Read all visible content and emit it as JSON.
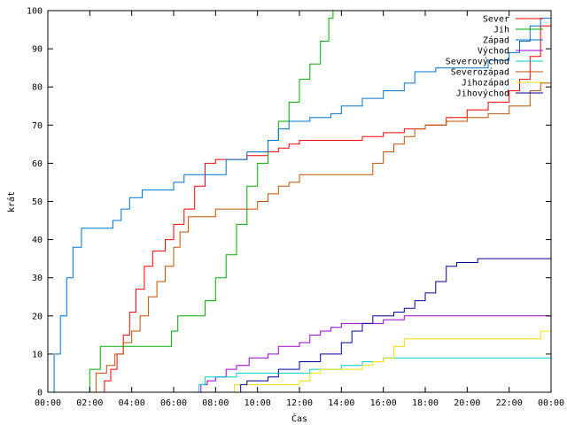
{
  "chart_data": {
    "type": "line",
    "xlabel": "Čas",
    "ylabel": "krát",
    "xlim": [
      0,
      24
    ],
    "ylim": [
      0,
      100
    ],
    "x_ticks": [
      {
        "value": 0,
        "label": "00:00"
      },
      {
        "value": 2,
        "label": "02:00"
      },
      {
        "value": 4,
        "label": "04:00"
      },
      {
        "value": 6,
        "label": "06:00"
      },
      {
        "value": 8,
        "label": "08:00"
      },
      {
        "value": 10,
        "label": "10:00"
      },
      {
        "value": 12,
        "label": "12:00"
      },
      {
        "value": 14,
        "label": "14:00"
      },
      {
        "value": 16,
        "label": "16:00"
      },
      {
        "value": 18,
        "label": "18:00"
      },
      {
        "value": 20,
        "label": "20:00"
      },
      {
        "value": 22,
        "label": "22:00"
      },
      {
        "value": 24,
        "label": "00:00"
      }
    ],
    "y_ticks": [
      0,
      10,
      20,
      30,
      40,
      50,
      60,
      70,
      80,
      90,
      100
    ],
    "grid": false,
    "legend_position": "top-right",
    "series": [
      {
        "name": "Sever",
        "color": "#ff0000",
        "points": [
          [
            2.5,
            0
          ],
          [
            2.7,
            3
          ],
          [
            3.0,
            6
          ],
          [
            3.3,
            10
          ],
          [
            3.6,
            15
          ],
          [
            3.9,
            21
          ],
          [
            4.2,
            27
          ],
          [
            4.6,
            33
          ],
          [
            5.0,
            37
          ],
          [
            5.6,
            40
          ],
          [
            6.0,
            44
          ],
          [
            6.5,
            48
          ],
          [
            7.0,
            54
          ],
          [
            7.5,
            60
          ],
          [
            8.0,
            61
          ],
          [
            9.5,
            62
          ],
          [
            10.5,
            63
          ],
          [
            11.0,
            64
          ],
          [
            11.5,
            65
          ],
          [
            12.0,
            66
          ],
          [
            13.0,
            66
          ],
          [
            14.0,
            66
          ],
          [
            15.0,
            67
          ],
          [
            16.0,
            68
          ],
          [
            17.0,
            69
          ],
          [
            18.0,
            70
          ],
          [
            19.0,
            72
          ],
          [
            20.0,
            74
          ],
          [
            21.0,
            76
          ],
          [
            22.0,
            79
          ],
          [
            22.5,
            82
          ],
          [
            23.0,
            88
          ],
          [
            23.5,
            96
          ],
          [
            24.0,
            98
          ]
        ]
      },
      {
        "name": "Jih",
        "color": "#00aa00",
        "points": [
          [
            1.7,
            0
          ],
          [
            2.0,
            6
          ],
          [
            2.5,
            12
          ],
          [
            4.0,
            12
          ],
          [
            5.5,
            12
          ],
          [
            5.9,
            16
          ],
          [
            6.2,
            20
          ],
          [
            7.0,
            20
          ],
          [
            7.5,
            24
          ],
          [
            8.0,
            30
          ],
          [
            8.5,
            36
          ],
          [
            9.0,
            44
          ],
          [
            9.5,
            54
          ],
          [
            10.0,
            60
          ],
          [
            10.5,
            66
          ],
          [
            11.0,
            71
          ],
          [
            11.5,
            76
          ],
          [
            12.0,
            82
          ],
          [
            12.5,
            86
          ],
          [
            13.0,
            92
          ],
          [
            13.4,
            98
          ],
          [
            13.6,
            100
          ]
        ]
      },
      {
        "name": "Západ",
        "color": "#0070cc",
        "points": [
          [
            0,
            0
          ],
          [
            0.3,
            10
          ],
          [
            0.6,
            20
          ],
          [
            0.9,
            30
          ],
          [
            1.2,
            38
          ],
          [
            1.6,
            43
          ],
          [
            2.8,
            43
          ],
          [
            3.1,
            45
          ],
          [
            3.5,
            48
          ],
          [
            3.9,
            51
          ],
          [
            4.5,
            53
          ],
          [
            5.5,
            53
          ],
          [
            6.0,
            55
          ],
          [
            6.5,
            57
          ],
          [
            7.5,
            57
          ],
          [
            8.5,
            61
          ],
          [
            9.5,
            63
          ],
          [
            10.5,
            66
          ],
          [
            11.0,
            69
          ],
          [
            11.5,
            71
          ],
          [
            12.5,
            72
          ],
          [
            13.5,
            73
          ],
          [
            14.0,
            75
          ],
          [
            15.0,
            77
          ],
          [
            16.0,
            79
          ],
          [
            17.0,
            81
          ],
          [
            17.5,
            84
          ],
          [
            18.5,
            85
          ],
          [
            20.0,
            85
          ],
          [
            21.0,
            87
          ],
          [
            22.0,
            89
          ],
          [
            22.5,
            92
          ],
          [
            23.0,
            96
          ],
          [
            23.5,
            98
          ],
          [
            24.0,
            98
          ]
        ]
      },
      {
        "name": "Východ",
        "color": "#9900cc",
        "points": [
          [
            7.1,
            0
          ],
          [
            7.3,
            2
          ],
          [
            7.6,
            3
          ],
          [
            8.0,
            4
          ],
          [
            8.5,
            6
          ],
          [
            9.0,
            7
          ],
          [
            9.6,
            9
          ],
          [
            10.5,
            10
          ],
          [
            11.0,
            12
          ],
          [
            12.0,
            13
          ],
          [
            12.5,
            15
          ],
          [
            13.0,
            16
          ],
          [
            13.5,
            17
          ],
          [
            14.0,
            18
          ],
          [
            16.0,
            19
          ],
          [
            17.0,
            20
          ],
          [
            24.0,
            20
          ]
        ]
      },
      {
        "name": "Severovýchod",
        "color": "#00cccc",
        "points": [
          [
            7.0,
            0
          ],
          [
            7.2,
            2
          ],
          [
            7.5,
            4
          ],
          [
            8.5,
            4
          ],
          [
            9.0,
            5
          ],
          [
            10.0,
            5
          ],
          [
            12.5,
            6
          ],
          [
            13.5,
            6
          ],
          [
            14.0,
            7
          ],
          [
            15.0,
            8
          ],
          [
            16.0,
            9
          ],
          [
            24.0,
            9
          ]
        ]
      },
      {
        "name": "Severozápad",
        "color": "#c05000",
        "points": [
          [
            1.8,
            0
          ],
          [
            2.3,
            5
          ],
          [
            2.8,
            7
          ],
          [
            3.2,
            10
          ],
          [
            3.6,
            13
          ],
          [
            4.0,
            16
          ],
          [
            4.4,
            20
          ],
          [
            4.8,
            25
          ],
          [
            5.2,
            29
          ],
          [
            5.6,
            33
          ],
          [
            6.0,
            38
          ],
          [
            6.3,
            42
          ],
          [
            6.7,
            46
          ],
          [
            7.2,
            46
          ],
          [
            8.0,
            48
          ],
          [
            9.5,
            48
          ],
          [
            10.0,
            50
          ],
          [
            10.5,
            52
          ],
          [
            11.0,
            54
          ],
          [
            11.5,
            55
          ],
          [
            12.0,
            57
          ],
          [
            14.0,
            57
          ],
          [
            15.0,
            57
          ],
          [
            15.5,
            60
          ],
          [
            16.0,
            63
          ],
          [
            16.5,
            65
          ],
          [
            17.0,
            67
          ],
          [
            17.5,
            69
          ],
          [
            18.0,
            70
          ],
          [
            19.0,
            71
          ],
          [
            20.0,
            72
          ],
          [
            21.0,
            73
          ],
          [
            22.0,
            75
          ],
          [
            23.0,
            79
          ],
          [
            23.5,
            81
          ],
          [
            24.0,
            82
          ]
        ]
      },
      {
        "name": "Jihozápad",
        "color": "#f0e000",
        "points": [
          [
            8.7,
            0
          ],
          [
            8.9,
            2
          ],
          [
            10.0,
            2
          ],
          [
            11.5,
            2
          ],
          [
            12.0,
            3
          ],
          [
            12.5,
            5
          ],
          [
            13.0,
            6
          ],
          [
            14.5,
            6
          ],
          [
            15.0,
            7
          ],
          [
            15.5,
            8
          ],
          [
            16.0,
            9
          ],
          [
            16.5,
            12
          ],
          [
            17.0,
            14
          ],
          [
            23.0,
            14
          ],
          [
            23.5,
            16
          ],
          [
            24.0,
            16
          ]
        ]
      },
      {
        "name": "Jihovýchod",
        "color": "#000099",
        "points": [
          [
            9.0,
            0
          ],
          [
            9.2,
            2
          ],
          [
            9.5,
            3
          ],
          [
            10.5,
            4
          ],
          [
            11.0,
            6
          ],
          [
            12.0,
            8
          ],
          [
            13.0,
            10
          ],
          [
            14.0,
            13
          ],
          [
            14.5,
            16
          ],
          [
            15.0,
            18
          ],
          [
            15.5,
            20
          ],
          [
            16.0,
            20
          ],
          [
            16.5,
            21
          ],
          [
            17.0,
            22
          ],
          [
            17.5,
            24
          ],
          [
            18.0,
            26
          ],
          [
            18.5,
            29
          ],
          [
            19.0,
            33
          ],
          [
            19.5,
            34
          ],
          [
            20.5,
            35
          ],
          [
            24.0,
            35
          ]
        ]
      }
    ]
  }
}
